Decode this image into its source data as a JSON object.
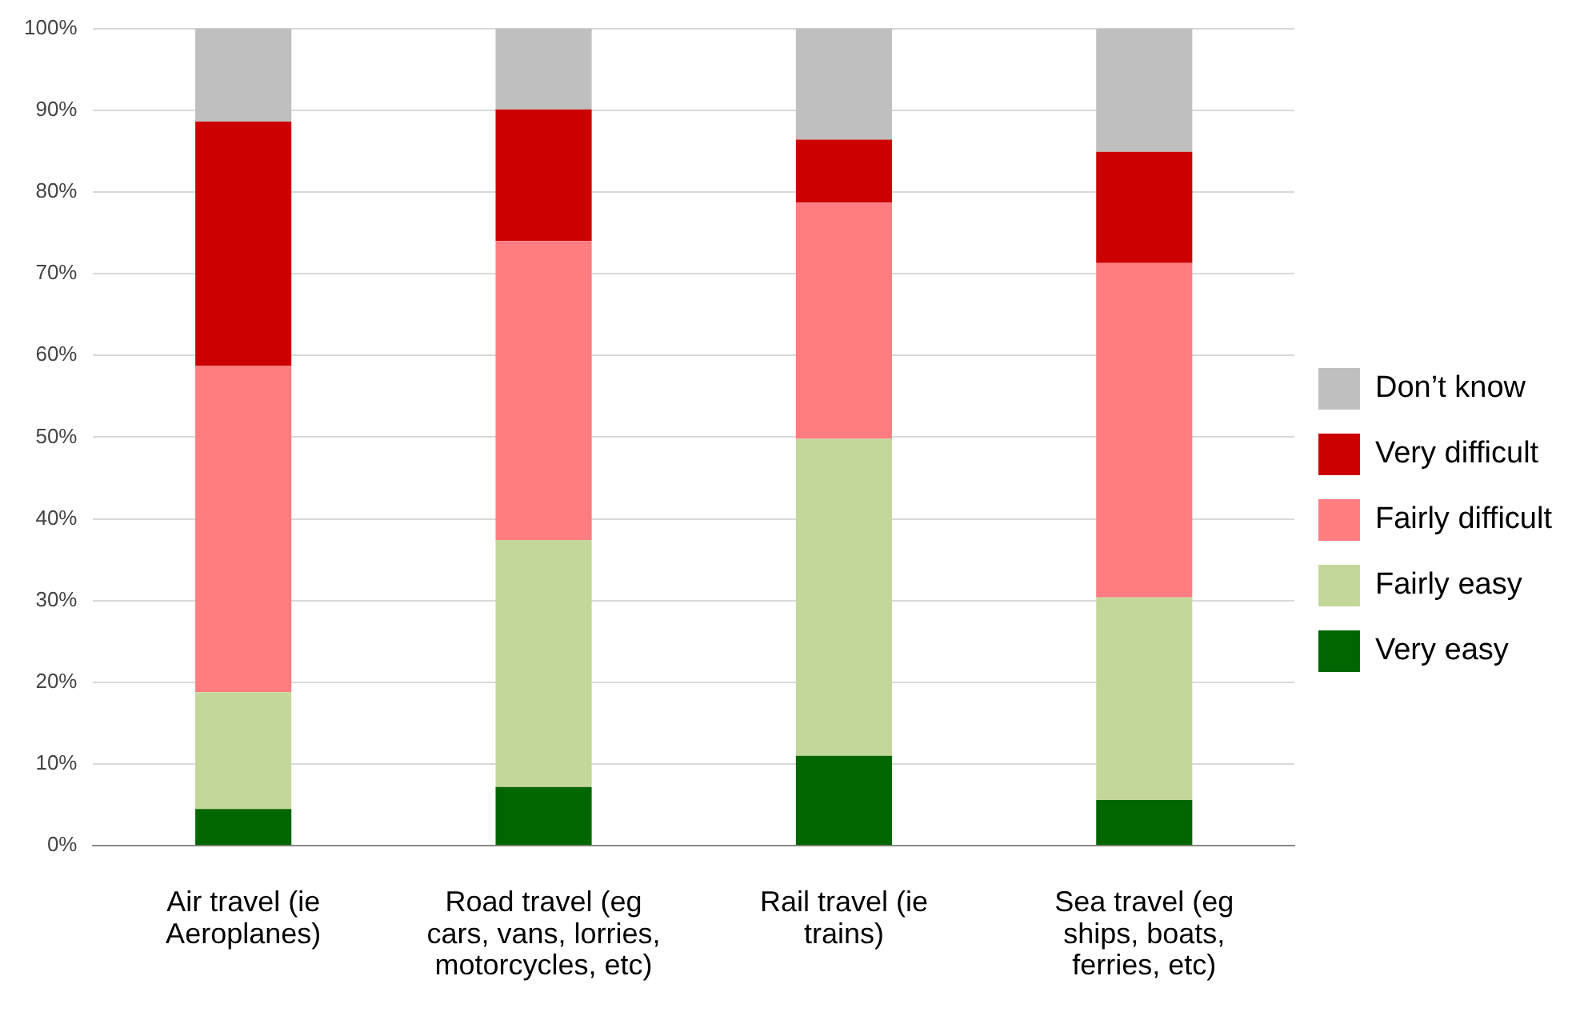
{
  "chart_data": {
    "type": "bar",
    "stacked": true,
    "categories": [
      "Air travel (ie Aeroplanes)",
      "Road travel (eg cars, vans, lorries, motorcycles, etc)",
      "Rail travel (ie trains)",
      "Sea travel (eg ships, boats, ferries, etc)"
    ],
    "series": [
      {
        "name": "Very easy",
        "color": "#006600",
        "values": [
          4.5,
          7.2,
          11.0,
          5.6
        ]
      },
      {
        "name": "Fairly easy",
        "color": "#c4d79b",
        "values": [
          14.3,
          30.2,
          38.8,
          24.8
        ]
      },
      {
        "name": "Fairly difficult",
        "color": "#ff7c80",
        "values": [
          39.9,
          36.6,
          28.9,
          40.9
        ]
      },
      {
        "name": "Very difficult",
        "color": "#cc0000",
        "values": [
          29.9,
          16.1,
          7.7,
          13.6
        ]
      },
      {
        "name": "Don’t know",
        "color": "#bfbfbf",
        "values": [
          11.4,
          9.9,
          13.6,
          15.1
        ]
      }
    ],
    "ylim": [
      0,
      100
    ],
    "yticks": [
      {
        "value": 0,
        "label": "0%"
      },
      {
        "value": 10,
        "label": "10%"
      },
      {
        "value": 20,
        "label": "20%"
      },
      {
        "value": 30,
        "label": "30%"
      },
      {
        "value": 40,
        "label": "40%"
      },
      {
        "value": 50,
        "label": "50%"
      },
      {
        "value": 60,
        "label": "60%"
      },
      {
        "value": 70,
        "label": "70%"
      },
      {
        "value": 80,
        "label": "80%"
      },
      {
        "value": 90,
        "label": "90%"
      },
      {
        "value": 100,
        "label": "100%"
      }
    ],
    "grid": "y",
    "legend": "right"
  }
}
